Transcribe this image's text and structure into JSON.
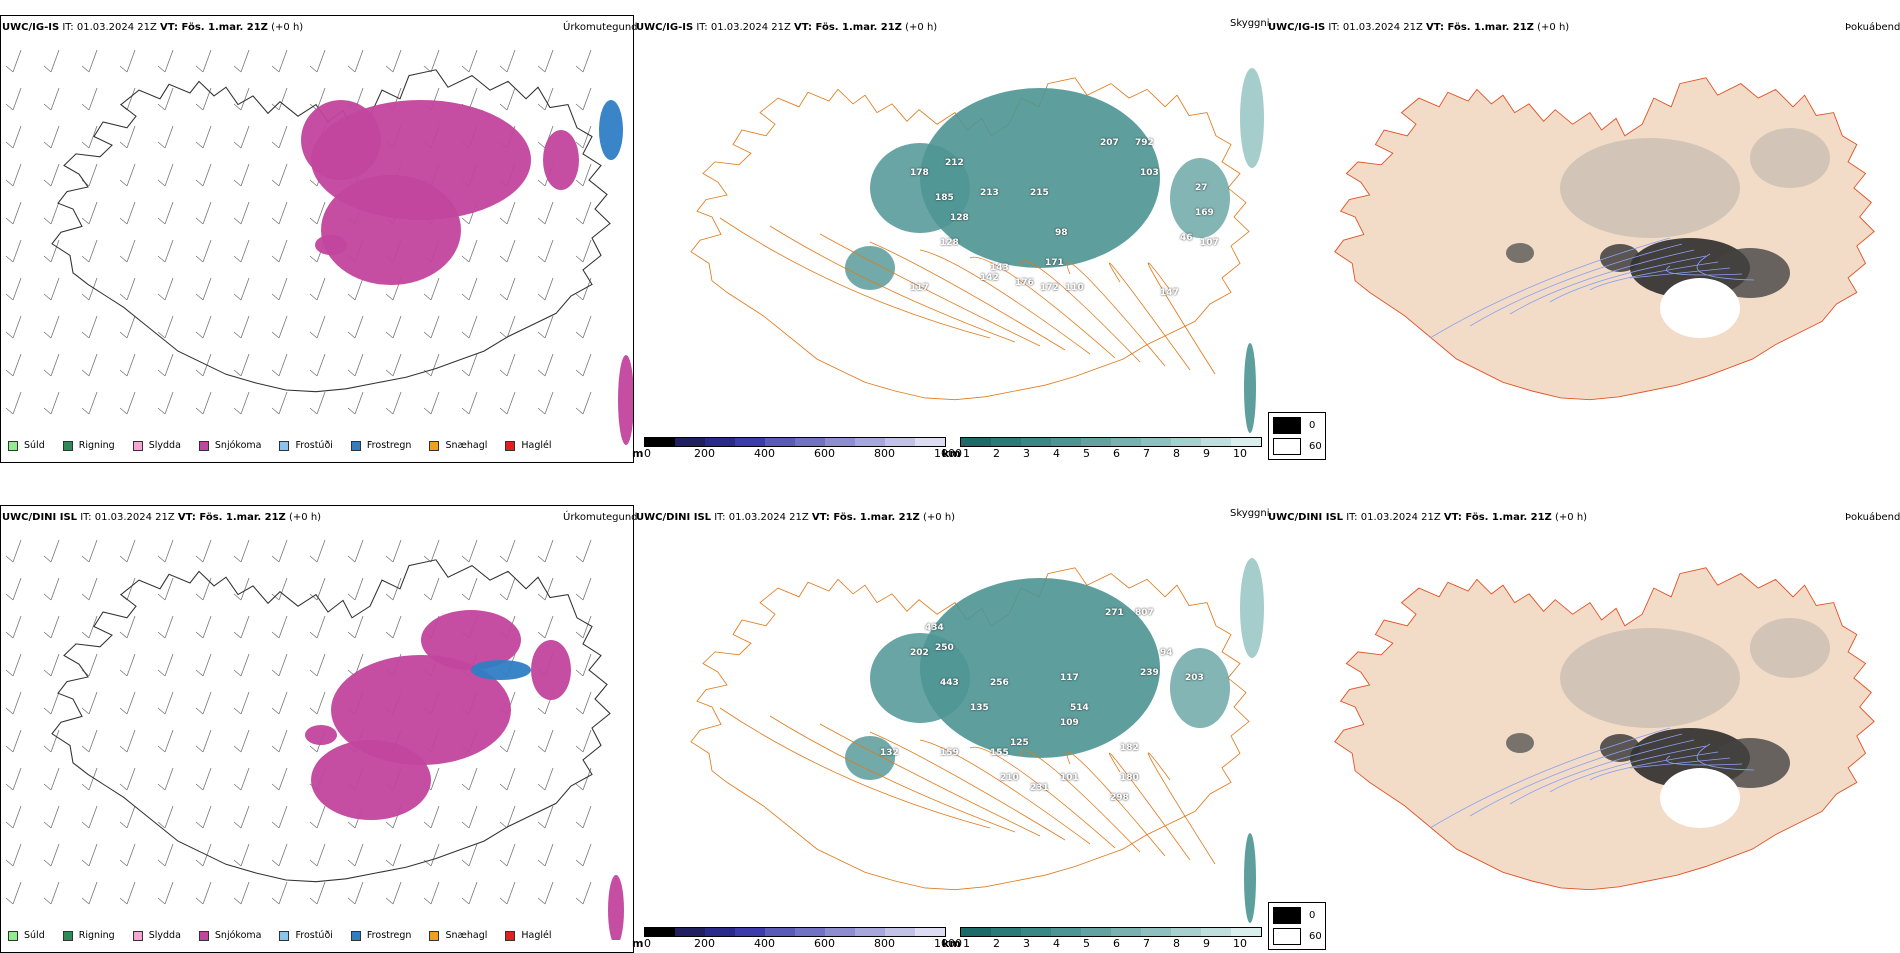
{
  "rows": [
    {
      "model": "UWC/IG-IS",
      "it_label": "IT:",
      "it_value": "01.03.2024 21Z",
      "vt_label": "VT:",
      "vt_value": "Fös. 1.mar. 21Z",
      "lead": "(+0 h)"
    },
    {
      "model": "UWC/DINI ISL",
      "it_label": "IT:",
      "it_value": "01.03.2024 21Z",
      "vt_label": "VT:",
      "vt_value": "Fös. 1.mar. 21Z",
      "lead": "(+0 h)"
    }
  ],
  "panels": {
    "precip_type": "Úrkomutegund",
    "cloud_base": "Skyggni",
    "fog_index": "Þokuábendi"
  },
  "precip_legend": [
    {
      "label": "Súld",
      "color": "#90ee90"
    },
    {
      "label": "Rigning",
      "color": "#2e8b57"
    },
    {
      "label": "Slydda",
      "color": "#f4a6d4"
    },
    {
      "label": "Snjókoma",
      "color": "#c2459e"
    },
    {
      "label": "Frostúði",
      "color": "#8cc4f0"
    },
    {
      "label": "Frostregn",
      "color": "#2f7ec4"
    },
    {
      "label": "Snæhagl",
      "color": "#f0a020"
    },
    {
      "label": "Haglél",
      "color": "#e02020"
    }
  ],
  "cloud_bar": {
    "unit": "m",
    "ticks": [
      "0",
      "200",
      "400",
      "600",
      "800",
      "1000"
    ],
    "colors": [
      "#000000",
      "#202060",
      "#2a2a8a",
      "#3b3bab",
      "#5a5ab8",
      "#7272c4",
      "#8d8dcf",
      "#a7a7db",
      "#c2c2e6",
      "#dcdcf2"
    ]
  },
  "vis_bar": {
    "unit": "km",
    "ticks": [
      "1",
      "2",
      "3",
      "4",
      "5",
      "6",
      "7",
      "8",
      "9",
      "10"
    ],
    "colors": [
      "#1d6b69",
      "#2a7b78",
      "#3a8886",
      "#4d9594",
      "#62a3a2",
      "#78b1b0",
      "#8fc0bf",
      "#a7cfce",
      "#c0dedd",
      "#daeeee"
    ]
  },
  "fog_legend": [
    {
      "label": "0",
      "color": "#000000"
    },
    {
      "label": "60",
      "color": "#ffffff"
    }
  ],
  "cloud_values_top": [
    "207",
    "792",
    "212",
    "178",
    "103",
    "185",
    "213",
    "215",
    "27",
    "128",
    "169",
    "98",
    "128",
    "46",
    "107",
    "143",
    "171",
    "142",
    "176",
    "172",
    "110",
    "147",
    "117"
  ],
  "cloud_values_bottom": [
    "434",
    "271",
    "807",
    "202",
    "250",
    "443",
    "256",
    "117",
    "94",
    "239",
    "203",
    "135",
    "514",
    "109",
    "159",
    "132",
    "155",
    "125",
    "182",
    "210",
    "231",
    "101",
    "180",
    "298"
  ]
}
